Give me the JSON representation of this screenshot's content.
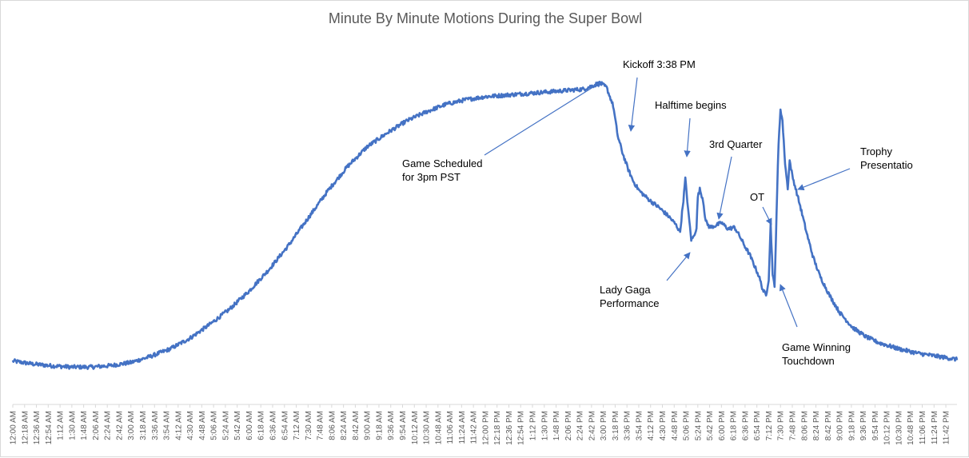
{
  "chart_data": {
    "type": "line",
    "title": "Minute By Minute Motions During the Super Bowl",
    "xlabel": "",
    "ylabel": "",
    "grid": false,
    "legend": "none",
    "x_unit": "time of day",
    "x_range": [
      "12:00 AM",
      "11:59 PM"
    ],
    "y_axis_visible": false,
    "ylim": [
      0,
      100
    ],
    "colors": {
      "line": "#4472C4",
      "title": "#595959",
      "ticks": "#595959",
      "frame": "#d9d9d9"
    },
    "x_tick_labels": [
      "12:00 AM",
      "12:18 AM",
      "12:36 AM",
      "12:54 AM",
      "1:12 AM",
      "1:30 AM",
      "1:48 AM",
      "2:06 AM",
      "2:24 AM",
      "2:42 AM",
      "3:00 AM",
      "3:18 AM",
      "3:36 AM",
      "3:54 AM",
      "4:12 AM",
      "4:30 AM",
      "4:48 AM",
      "5:06 AM",
      "5:24 AM",
      "5:42 AM",
      "6:00 AM",
      "6:18 AM",
      "6:36 AM",
      "6:54 AM",
      "7:12 AM",
      "7:30 AM",
      "7:48 AM",
      "8:06 AM",
      "8:24 AM",
      "8:42 AM",
      "9:00 AM",
      "9:18 AM",
      "9:36 AM",
      "9:54 AM",
      "10:12 AM",
      "10:30 AM",
      "10:48 AM",
      "11:06 AM",
      "11:24 AM",
      "11:42 AM",
      "12:00 PM",
      "12:18 PM",
      "12:36 PM",
      "12:54 PM",
      "1:12 PM",
      "1:30 PM",
      "1:48 PM",
      "2:06 PM",
      "2:24 PM",
      "2:42 PM",
      "3:00 PM",
      "3:18 PM",
      "3:36 PM",
      "3:54 PM",
      "4:12 PM",
      "4:30 PM",
      "4:48 PM",
      "5:06 PM",
      "5:24 PM",
      "5:42 PM",
      "6:00 PM",
      "6:18 PM",
      "6:36 PM",
      "6:54 PM",
      "7:12 PM",
      "7:30 PM",
      "7:48 PM",
      "8:06 PM",
      "8:24 PM",
      "8:42 PM",
      "9:00 PM",
      "9:18 PM",
      "9:36 PM",
      "9:54 PM",
      "10:12 PM",
      "10:30 PM",
      "10:48 PM",
      "11:06 PM",
      "11:24 PM",
      "11:42 PM"
    ],
    "series": [
      {
        "values_note_unit": "relative motion level (estimated, axis not printed)",
        "points": [
          [
            "12:00 AM",
            3.0
          ],
          [
            "12:30 AM",
            2.0
          ],
          [
            "1:00 AM",
            1.4
          ],
          [
            "1:30 AM",
            1.0
          ],
          [
            "2:00 AM",
            1.0
          ],
          [
            "2:30 AM",
            1.5
          ],
          [
            "3:00 AM",
            2.5
          ],
          [
            "3:30 AM",
            4.5
          ],
          [
            "4:00 AM",
            7.0
          ],
          [
            "4:30 AM",
            10.5
          ],
          [
            "5:00 AM",
            15.0
          ],
          [
            "5:30 AM",
            20.0
          ],
          [
            "6:00 AM",
            26.0
          ],
          [
            "6:30 AM",
            33.0
          ],
          [
            "7:00 AM",
            41.0
          ],
          [
            "7:30 AM",
            50.0
          ],
          [
            "8:00 AM",
            59.0
          ],
          [
            "8:30 AM",
            67.0
          ],
          [
            "9:00 AM",
            73.5
          ],
          [
            "9:30 AM",
            78.0
          ],
          [
            "10:00 AM",
            82.0
          ],
          [
            "10:30 AM",
            85.0
          ],
          [
            "11:00 AM",
            87.5
          ],
          [
            "11:30 AM",
            89.0
          ],
          [
            "12:00 PM",
            90.0
          ],
          [
            "12:30 PM",
            90.5
          ],
          [
            "1:00 PM",
            91.0
          ],
          [
            "1:30 PM",
            91.5
          ],
          [
            "2:00 PM",
            92.0
          ],
          [
            "2:30 PM",
            92.5
          ],
          [
            "2:55 PM",
            94.5
          ],
          [
            "3:05 PM",
            93.0
          ],
          [
            "3:15 PM",
            87.0
          ],
          [
            "3:22 PM",
            77.0
          ],
          [
            "3:30 PM",
            71.0
          ],
          [
            "3:38 PM",
            66.0
          ],
          [
            "3:46 PM",
            62.0
          ],
          [
            "3:55 PM",
            59.0
          ],
          [
            "4:10 PM",
            56.0
          ],
          [
            "4:25 PM",
            53.5
          ],
          [
            "4:40 PM",
            50.5
          ],
          [
            "4:50 PM",
            48.0
          ],
          [
            "4:57 PM",
            45.5
          ],
          [
            "5:02 PM",
            56.0
          ],
          [
            "5:05 PM",
            63.0
          ],
          [
            "5:10 PM",
            51.0
          ],
          [
            "5:14 PM",
            43.0
          ],
          [
            "5:18 PM",
            44.0
          ],
          [
            "5:22 PM",
            47.0
          ],
          [
            "5:24 PM",
            57.0
          ],
          [
            "5:27 PM",
            59.5
          ],
          [
            "5:32 PM",
            56.0
          ],
          [
            "5:36 PM",
            49.0
          ],
          [
            "5:42 PM",
            47.0
          ],
          [
            "5:50 PM",
            47.5
          ],
          [
            "6:00 PM",
            48.5
          ],
          [
            "6:10 PM",
            46.5
          ],
          [
            "6:20 PM",
            47.0
          ],
          [
            "6:28 PM",
            44.0
          ],
          [
            "6:35 PM",
            41.0
          ],
          [
            "6:43 PM",
            38.0
          ],
          [
            "6:50 PM",
            34.5
          ],
          [
            "6:57 PM",
            31.0
          ],
          [
            "7:03 PM",
            26.5
          ],
          [
            "7:08 PM",
            24.5
          ],
          [
            "7:12 PM",
            30.0
          ],
          [
            "7:15 PM",
            48.0
          ],
          [
            "7:18 PM",
            32.0
          ],
          [
            "7:21 PM",
            27.0
          ],
          [
            "7:24 PM",
            52.0
          ],
          [
            "7:27 PM",
            74.0
          ],
          [
            "7:30 PM",
            86.0
          ],
          [
            "7:33 PM",
            82.0
          ],
          [
            "7:37 PM",
            68.0
          ],
          [
            "7:41 PM",
            60.0
          ],
          [
            "7:44 PM",
            69.0
          ],
          [
            "7:48 PM",
            64.0
          ],
          [
            "7:54 PM",
            59.0
          ],
          [
            "8:00 PM",
            54.0
          ],
          [
            "8:10 PM",
            45.0
          ],
          [
            "8:20 PM",
            37.0
          ],
          [
            "8:30 PM",
            31.0
          ],
          [
            "8:45 PM",
            24.5
          ],
          [
            "9:00 PM",
            19.0
          ],
          [
            "9:20 PM",
            14.0
          ],
          [
            "9:40 PM",
            11.0
          ],
          [
            "10:00 PM",
            9.0
          ],
          [
            "10:30 PM",
            7.0
          ],
          [
            "11:00 PM",
            5.5
          ],
          [
            "11:30 PM",
            4.5
          ],
          [
            "11:59 PM",
            3.5
          ]
        ]
      }
    ],
    "annotations": [
      {
        "lines": [
          "Kickoff 3:38 PM"
        ]
      },
      {
        "lines": [
          "Halftime begins"
        ]
      },
      {
        "lines": [
          "3rd Quarter"
        ]
      },
      {
        "lines": [
          "Game Scheduled",
          "for 3pm PST"
        ]
      },
      {
        "lines": [
          "Trophy",
          "Presentatio"
        ]
      },
      {
        "lines": [
          "OT"
        ]
      },
      {
        "lines": [
          "Lady Gaga",
          "Performance"
        ]
      },
      {
        "lines": [
          "Game Winning",
          "Touchdown"
        ]
      }
    ]
  }
}
